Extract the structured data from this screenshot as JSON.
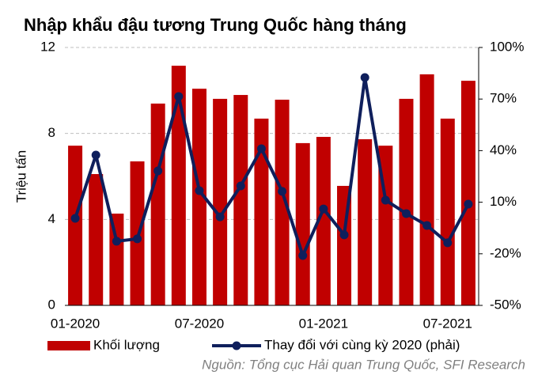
{
  "chart_data": {
    "type": "bar",
    "title": "Nhập khẩu đậu tương Trung Quốc hàng tháng",
    "ylabel": "Triệu tấn",
    "source": "Nguồn: Tổng cục Hải quan Trung Quốc, SFI Research",
    "categories": [
      "01-2020",
      null,
      null,
      null,
      null,
      null,
      "07-2020",
      null,
      null,
      null,
      null,
      null,
      "01-2021",
      null,
      null,
      null,
      null,
      null,
      "07-2021",
      null
    ],
    "series": [
      {
        "name": "Khối lượng",
        "type": "bar",
        "color": "#c00000",
        "values": [
          7.43,
          6.11,
          4.27,
          6.7,
          9.39,
          11.15,
          10.08,
          9.61,
          9.79,
          8.69,
          9.57,
          7.55,
          7.84,
          5.56,
          7.73,
          7.43,
          9.61,
          10.75,
          8.69,
          10.45
        ]
      },
      {
        "name": "Thay đổi với cùng kỳ 2020 (phải)",
        "type": "line",
        "axis": "y2",
        "color": "#0f1f5c",
        "values": [
          0.6,
          37.4,
          -12.7,
          -11.3,
          28.2,
          71.5,
          16.7,
          1.5,
          19.5,
          41.1,
          16.3,
          -21.0,
          6.1,
          -9.0,
          82.5,
          11.2,
          3.4,
          -3.5,
          -13.6,
          8.9
        ]
      }
    ],
    "ylim": [
      0,
      12
    ],
    "yticks": [
      0,
      4,
      8,
      12
    ],
    "y2lim": [
      -50,
      100
    ],
    "y2ticks": [
      {
        "value": -50,
        "label": "-50%"
      },
      {
        "value": -20,
        "label": "-20%"
      },
      {
        "value": 10,
        "label": "10%"
      },
      {
        "value": 40,
        "label": "40%"
      },
      {
        "value": 70,
        "label": "70%"
      },
      {
        "value": 100,
        "label": "100%"
      }
    ],
    "grid": true
  }
}
